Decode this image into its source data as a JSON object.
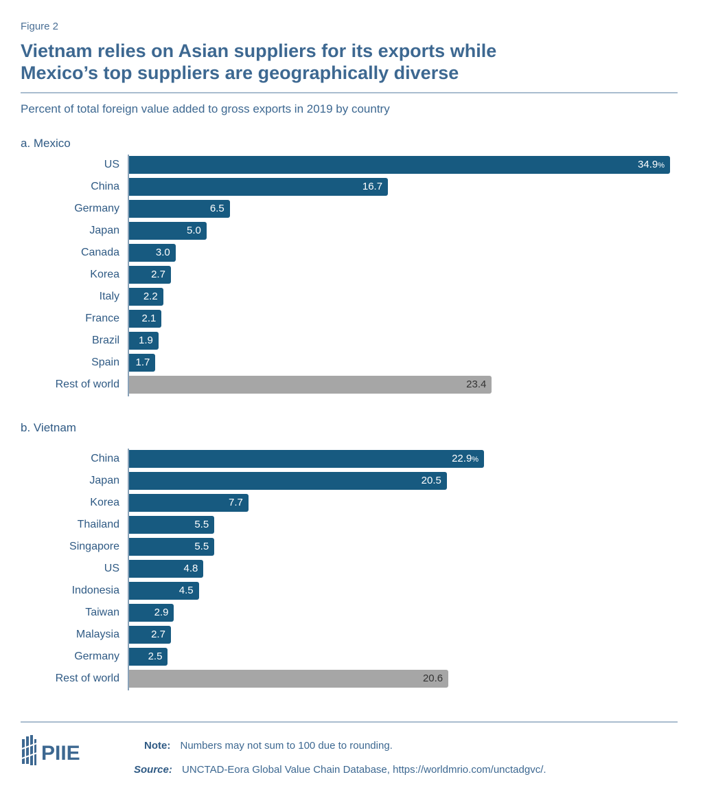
{
  "figure_label": "Figure 2",
  "title_line1": "Vietnam relies on Asian suppliers for its exports while",
  "title_line2": "Mexico’s top suppliers are geographically diverse",
  "subtitle": "Percent of total foreign value added to gross exports in 2019 by country",
  "colors": {
    "bar": "#175a80",
    "rest_of_world": "#a6a6a6",
    "text": "#3d6891"
  },
  "chart_data": [
    {
      "type": "bar",
      "orientation": "horizontal",
      "title": "a. Mexico",
      "categories": [
        "US",
        "China",
        "Germany",
        "Japan",
        "Canada",
        "Korea",
        "Italy",
        "France",
        "Brazil",
        "Spain",
        "Rest of world"
      ],
      "values": [
        34.9,
        16.7,
        6.5,
        5.0,
        3.0,
        2.7,
        2.2,
        2.1,
        1.9,
        1.7,
        23.4
      ],
      "labels": [
        "34.9",
        "16.7",
        "6.5",
        "5.0",
        "3.0",
        "2.7",
        "2.2",
        "2.1",
        "1.9",
        "1.7",
        "23.4"
      ],
      "unit": "%",
      "xlim": [
        0,
        35
      ]
    },
    {
      "type": "bar",
      "orientation": "horizontal",
      "title": "b. Vietnam",
      "categories": [
        "China",
        "Japan",
        "Korea",
        "Thailand",
        "Singapore",
        "US",
        "Indonesia",
        "Taiwan",
        "Malaysia",
        "Germany",
        "Rest of world"
      ],
      "values": [
        22.9,
        20.5,
        7.7,
        5.5,
        5.5,
        4.8,
        4.5,
        2.9,
        2.7,
        2.5,
        20.6
      ],
      "labels": [
        "22.9",
        "20.5",
        "7.7",
        "5.5",
        "5.5",
        "4.8",
        "4.5",
        "2.9",
        "2.7",
        "2.5",
        "20.6"
      ],
      "unit": "%",
      "xlim": [
        0,
        35
      ]
    }
  ],
  "footer": {
    "logo_text": "PIIE",
    "note_label": "Note:",
    "note_text": "Numbers may not sum to 100 due to rounding.",
    "source_label": "Source:",
    "source_text": "UNCTAD-Eora Global Value Chain Database, https://worldmrio.com/unctadgvc/."
  }
}
